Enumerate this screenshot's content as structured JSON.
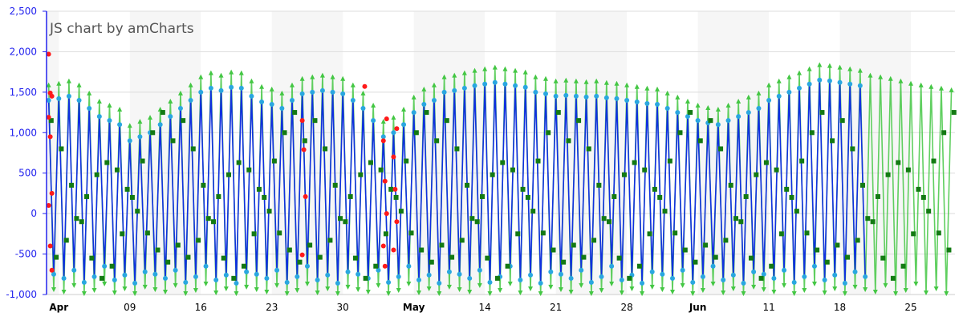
{
  "chart_data": {
    "type": "line",
    "title": "JS chart by amCharts",
    "xlabel": "",
    "ylabel": "",
    "ylim": [
      -1000,
      2500
    ],
    "y_ticks": [
      {
        "value": 2500,
        "label": "2,500"
      },
      {
        "value": 2000,
        "label": "2,000"
      },
      {
        "value": 1500,
        "label": "1,500"
      },
      {
        "value": 1000,
        "label": "1,000"
      },
      {
        "value": 500,
        "label": "500"
      },
      {
        "value": 0,
        "label": "0"
      },
      {
        "value": -500,
        "label": "-500"
      },
      {
        "value": -1000,
        "label": "-1,000"
      }
    ],
    "xlim": [
      "2018-03-31",
      "2018-06-30"
    ],
    "x_ticks": [
      {
        "date": "2018-04-02",
        "label": "Apr",
        "major": true
      },
      {
        "date": "2018-04-09",
        "label": "09",
        "major": false
      },
      {
        "date": "2018-04-16",
        "label": "16",
        "major": false
      },
      {
        "date": "2018-04-23",
        "label": "23",
        "major": false
      },
      {
        "date": "2018-04-30",
        "label": "30",
        "major": false
      },
      {
        "date": "2018-05-07",
        "label": "May",
        "major": true
      },
      {
        "date": "2018-05-14",
        "label": "14",
        "major": false
      },
      {
        "date": "2018-05-21",
        "label": "21",
        "major": false
      },
      {
        "date": "2018-05-28",
        "label": "28",
        "major": false
      },
      {
        "date": "2018-06-04",
        "label": "Jun",
        "major": true
      },
      {
        "date": "2018-06-11",
        "label": "11",
        "major": false
      },
      {
        "date": "2018-06-18",
        "label": "18",
        "major": false
      },
      {
        "date": "2018-06-25",
        "label": "25",
        "major": false
      }
    ],
    "grid": true,
    "alternating_week_bands": true,
    "x_start": "2018-04-01",
    "series": [
      {
        "style": "line-with-arrow-bullets",
        "color": "#44c744",
        "high": [
          1600,
          1620,
          1650,
          1600,
          1500,
          1400,
          1350,
          1300,
          1100,
          1150,
          1200,
          1300,
          1400,
          1500,
          1600,
          1700,
          1750,
          1720,
          1760,
          1750,
          1650,
          1580,
          1550,
          1500,
          1600,
          1680,
          1700,
          1720,
          1700,
          1680,
          1600,
          1500,
          1350,
          1150,
          1200,
          1300,
          1450,
          1550,
          1600,
          1700,
          1720,
          1750,
          1780,
          1800,
          1820,
          1800,
          1780,
          1760,
          1700,
          1680,
          1650,
          1660,
          1650,
          1640,
          1650,
          1630,
          1620,
          1600,
          1580,
          1560,
          1550,
          1500,
          1450,
          1400,
          1350,
          1320,
          1300,
          1350,
          1400,
          1450,
          1500,
          1600,
          1650,
          1700,
          1750,
          1800,
          1850,
          1840,
          1820,
          1800,
          1780,
          1720,
          1700,
          1680,
          1650,
          1620,
          1600,
          1580,
          1560,
          1540,
          1520
        ],
        "low": [
          -950,
          -980,
          -900,
          -1000,
          -960,
          -880,
          -990,
          -940,
          -1000,
          -920,
          -950,
          -980,
          -900,
          -1000,
          -960,
          -880,
          -990,
          -940,
          -1000,
          -920,
          -950,
          -980,
          -900,
          -1000,
          -960,
          -880,
          -990,
          -940,
          -1000,
          -920,
          -950,
          -980,
          -900,
          -1000,
          -960,
          -880,
          -990,
          -940,
          -1000,
          -920,
          -950,
          -980,
          -900,
          -1000,
          -960,
          -880,
          -990,
          -940,
          -1000,
          -920,
          -950,
          -980,
          -900,
          -1000,
          -960,
          -880,
          -990,
          -940,
          -1000,
          -920,
          -950,
          -980,
          -900,
          -1000,
          -960,
          -880,
          -990,
          -940,
          -1000,
          -920,
          -950,
          -980,
          -900,
          -1000,
          -960,
          -880,
          -990,
          -940,
          -1000,
          -920,
          -950,
          -980,
          -900,
          -1000,
          -960,
          -880,
          -990,
          -940,
          -1000,
          -920,
          -960
        ]
      },
      {
        "style": "line-with-round-bullets",
        "color": "#1030e0",
        "bullet_color": "#2aa7e0",
        "high": [
          1400,
          1420,
          1450,
          1400,
          1300,
          1200,
          1150,
          1100,
          900,
          950,
          1000,
          1100,
          1200,
          1300,
          1400,
          1500,
          1550,
          1520,
          1560,
          1550,
          1450,
          1380,
          1350,
          1300,
          1400,
          1480,
          1500,
          1520,
          1500,
          1480,
          1400,
          1300,
          1150,
          950,
          1000,
          1100,
          1250,
          1350,
          1400,
          1500,
          1520,
          1550,
          1580,
          1600,
          1620,
          1600,
          1580,
          1560,
          1500,
          1480,
          1450,
          1460,
          1450,
          1440,
          1450,
          1430,
          1420,
          1400,
          1380,
          1360,
          1350,
          1300,
          1250,
          1200,
          1150,
          1120,
          1100,
          1150,
          1200,
          1250,
          1300,
          1400,
          1450,
          1500,
          1550,
          1600,
          1650,
          1640,
          1620,
          1600,
          1580
        ],
        "low": [
          -750,
          -800,
          -700,
          -850,
          -780,
          -650,
          -820,
          -760,
          -860,
          -720,
          -750,
          -800,
          -700,
          -850,
          -780,
          -650,
          -820,
          -760,
          -860,
          -720,
          -750,
          -800,
          -700,
          -850,
          -780,
          -650,
          -820,
          -760,
          -860,
          -720,
          -750,
          -800,
          -700,
          -850,
          -780,
          -650,
          -820,
          -760,
          -860,
          -720,
          -750,
          -800,
          -700,
          -850,
          -780,
          -650,
          -820,
          -760,
          -860,
          -720,
          -750,
          -800,
          -700,
          -850,
          -780,
          -650,
          -820,
          -760,
          -860,
          -720,
          -750,
          -800,
          -700,
          -850,
          -780,
          -650,
          -820,
          -760,
          -860,
          -720,
          -750,
          -800,
          -700,
          -850,
          -780,
          -650,
          -820,
          -760,
          -860,
          -720,
          -780
        ]
      },
      {
        "style": "square-bullets",
        "color": "#137a13",
        "values": [
          1150,
          800,
          350,
          -100,
          -550,
          -800,
          -650,
          -250,
          200,
          650,
          1000,
          1250,
          900,
          1150,
          800,
          350,
          -100,
          -550,
          -800,
          -650,
          -250,
          200,
          650,
          1000,
          1250,
          900,
          1150,
          800,
          350,
          -100,
          -550,
          -800,
          -650,
          -250,
          200,
          650,
          1000,
          1250,
          900,
          1150,
          800,
          350,
          -100,
          -550,
          -800,
          -650,
          -250,
          200,
          650,
          1000,
          1250,
          900,
          1150,
          800,
          350,
          -100,
          -550,
          -800,
          -650,
          -250,
          200,
          650,
          1000,
          1250,
          900,
          1150,
          800,
          350,
          -100,
          -550,
          -800,
          -650,
          -250,
          200,
          650,
          1000,
          1250,
          900,
          1150,
          800,
          350,
          -100,
          -550,
          -800,
          -650,
          -250,
          200,
          650,
          1000,
          1250,
          900
        ]
      },
      {
        "style": "red-dots",
        "color": "#ff1a1a",
        "points": [
          [
            "2018-04-01",
            1970
          ],
          [
            "2018-04-01",
            1490
          ],
          [
            "2018-04-01",
            1450
          ],
          [
            "2018-04-01",
            1190
          ],
          [
            "2018-04-01",
            950
          ],
          [
            "2018-04-01",
            250
          ],
          [
            "2018-04-01",
            100
          ],
          [
            "2018-04-01",
            -400
          ],
          [
            "2018-04-01",
            -700
          ],
          [
            "2018-04-26",
            1150
          ],
          [
            "2018-04-26",
            790
          ],
          [
            "2018-04-26",
            210
          ],
          [
            "2018-04-26",
            -510
          ],
          [
            "2018-05-02",
            1570
          ],
          [
            "2018-05-04",
            1170
          ],
          [
            "2018-05-04",
            900
          ],
          [
            "2018-05-04",
            400
          ],
          [
            "2018-05-04",
            0
          ],
          [
            "2018-05-04",
            -400
          ],
          [
            "2018-05-04",
            -650
          ],
          [
            "2018-05-05",
            1050
          ],
          [
            "2018-05-05",
            700
          ],
          [
            "2018-05-05",
            300
          ],
          [
            "2018-05-05",
            -100
          ],
          [
            "2018-05-05",
            -450
          ]
        ]
      }
    ]
  }
}
